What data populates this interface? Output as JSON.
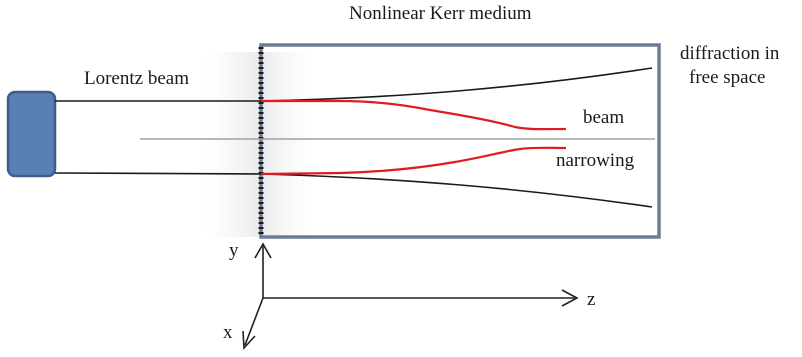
{
  "title": "Nonlinear Kerr medium",
  "labels": {
    "beam_source": "Lorentz beam",
    "diffraction_line1": "diffraction in",
    "diffraction_line2": "free space",
    "narrowing_line1": "beam",
    "narrowing_line2": "narrowing"
  },
  "axes": {
    "y": "y",
    "z": "z",
    "x": "x"
  },
  "colors": {
    "source_fill": "#5a7fb4",
    "source_stroke": "#3f5d8a",
    "medium_border": "#6b7c93",
    "diffraction_line": "#1a1a1a",
    "narrowing_line": "#e01b24",
    "axis_line": "#222222",
    "center_line": "#a0a0a0"
  }
}
